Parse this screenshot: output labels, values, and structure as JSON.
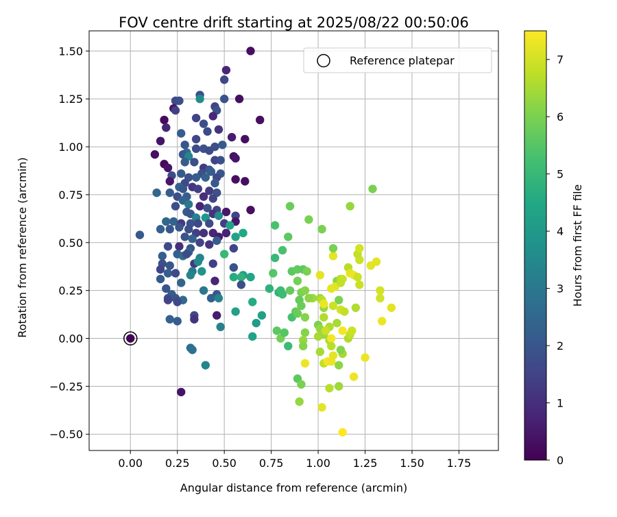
{
  "chart_data": {
    "type": "scatter",
    "title": "FOV centre drift starting at 2025/08/22 00:50:06",
    "xlabel": "Angular distance from reference (arcmin)",
    "ylabel": "Rotation from reference (arcmin)",
    "xlim": [
      -0.22,
      1.96
    ],
    "ylim": [
      -0.585,
      1.605
    ],
    "xticks": [
      0.0,
      0.25,
      0.5,
      0.75,
      1.0,
      1.25,
      1.5,
      1.75
    ],
    "xtick_labels": [
      "0.00",
      "0.25",
      "0.50",
      "0.75",
      "1.00",
      "1.25",
      "1.50",
      "1.75"
    ],
    "yticks": [
      -0.5,
      -0.25,
      0.0,
      0.25,
      0.5,
      0.75,
      1.0,
      1.25,
      1.5
    ],
    "ytick_labels": [
      "−0.50",
      "−0.25",
      "0.00",
      "0.25",
      "0.50",
      "0.75",
      "1.00",
      "1.25",
      "1.50"
    ],
    "grid": true,
    "legend": {
      "position": "top-right",
      "entries": [
        "Reference platepar"
      ]
    },
    "reference_point": [
      0.0,
      0.0
    ],
    "colorbar": {
      "label": "Hours from first FF file",
      "min": 0,
      "max": 7.5,
      "ticks": [
        0,
        1,
        2,
        3,
        4,
        5,
        6,
        7
      ],
      "colormap": "viridis"
    },
    "points": [
      [
        0.64,
        1.5,
        0.3
      ],
      [
        0.51,
        1.4,
        0.8
      ],
      [
        0.5,
        1.35,
        1.6
      ],
      [
        0.37,
        1.27,
        1.8
      ],
      [
        0.37,
        1.25,
        3.6
      ],
      [
        0.58,
        1.25,
        0.3
      ],
      [
        0.5,
        1.25,
        1.9
      ],
      [
        0.24,
        1.24,
        1.6
      ],
      [
        0.26,
        1.24,
        1.8
      ],
      [
        0.45,
        1.21,
        1.5
      ],
      [
        0.23,
        1.2,
        0.4
      ],
      [
        0.24,
        1.19,
        1.4
      ],
      [
        0.46,
        1.19,
        1.9
      ],
      [
        0.44,
        1.16,
        0.9
      ],
      [
        0.18,
        1.14,
        0.2
      ],
      [
        0.69,
        1.14,
        0.3
      ],
      [
        0.35,
        1.15,
        1.5
      ],
      [
        0.39,
        1.12,
        1.8
      ],
      [
        0.19,
        1.1,
        0.8
      ],
      [
        0.41,
        1.08,
        1.7
      ],
      [
        0.47,
        1.09,
        1.1
      ],
      [
        0.27,
        1.07,
        2.2
      ],
      [
        0.35,
        1.04,
        1.6
      ],
      [
        0.61,
        1.04,
        0.3
      ],
      [
        0.16,
        1.03,
        0.4
      ],
      [
        0.54,
        1.05,
        0.6
      ],
      [
        0.29,
        1.01,
        2.0
      ],
      [
        0.45,
        1.0,
        1.8
      ],
      [
        0.49,
        1.01,
        2.1
      ],
      [
        0.35,
        0.99,
        1.7
      ],
      [
        0.39,
        0.99,
        1.9
      ],
      [
        0.42,
        0.98,
        1.7
      ],
      [
        0.3,
        0.97,
        2.6
      ],
      [
        0.13,
        0.96,
        0.3
      ],
      [
        0.28,
        0.96,
        2.0
      ],
      [
        0.31,
        0.95,
        3.4
      ],
      [
        0.55,
        0.95,
        0.3
      ],
      [
        0.56,
        0.94,
        0.4
      ],
      [
        0.45,
        0.93,
        1.5
      ],
      [
        0.48,
        0.93,
        1.8
      ],
      [
        0.29,
        0.92,
        2.2
      ],
      [
        0.34,
        0.92,
        1.8
      ],
      [
        0.18,
        0.91,
        0.2
      ],
      [
        0.2,
        0.89,
        0.4
      ],
      [
        0.39,
        0.89,
        1.3
      ],
      [
        0.42,
        0.88,
        2.1
      ],
      [
        0.43,
        0.87,
        2.2
      ],
      [
        0.27,
        0.86,
        2.1
      ],
      [
        0.22,
        0.85,
        1.7
      ],
      [
        0.38,
        0.86,
        1.8
      ],
      [
        0.48,
        0.86,
        2.0
      ],
      [
        0.31,
        0.84,
        1.9
      ],
      [
        0.35,
        0.84,
        2.2
      ],
      [
        0.4,
        0.84,
        2.3
      ],
      [
        0.46,
        0.84,
        1.6
      ],
      [
        0.21,
        0.82,
        0.5
      ],
      [
        0.29,
        0.81,
        1.7
      ],
      [
        0.56,
        0.83,
        0.3
      ],
      [
        0.61,
        0.82,
        0.3
      ],
      [
        0.45,
        0.81,
        2.1
      ],
      [
        0.26,
        0.79,
        2.4
      ],
      [
        0.33,
        0.79,
        1.2
      ],
      [
        0.28,
        0.78,
        2.0
      ],
      [
        0.36,
        0.78,
        1.4
      ],
      [
        0.42,
        0.77,
        1.3
      ],
      [
        0.14,
        0.76,
        2.5
      ],
      [
        0.21,
        0.76,
        2.2
      ],
      [
        0.46,
        0.76,
        1.9
      ],
      [
        0.25,
        0.74,
        1.8
      ],
      [
        0.3,
        0.74,
        2.2
      ],
      [
        0.39,
        0.74,
        1.0
      ],
      [
        0.44,
        0.73,
        1.5
      ],
      [
        0.28,
        0.72,
        2.4
      ],
      [
        0.31,
        0.7,
        3.0
      ],
      [
        0.37,
        0.69,
        0.8
      ],
      [
        0.24,
        0.69,
        1.8
      ],
      [
        0.41,
        0.68,
        1.8
      ],
      [
        0.46,
        0.67,
        1.5
      ],
      [
        0.64,
        0.67,
        0.3
      ],
      [
        0.51,
        0.66,
        0.5
      ],
      [
        0.3,
        0.66,
        2.1
      ],
      [
        0.32,
        0.65,
        2.0
      ],
      [
        0.44,
        0.65,
        1.1
      ],
      [
        0.47,
        0.64,
        3.6
      ],
      [
        0.35,
        0.63,
        3.3
      ],
      [
        0.4,
        0.63,
        3.9
      ],
      [
        0.56,
        0.64,
        1.5
      ],
      [
        0.19,
        0.61,
        2.5
      ],
      [
        0.23,
        0.61,
        2.4
      ],
      [
        0.27,
        0.6,
        1.3
      ],
      [
        0.32,
        0.6,
        1.9
      ],
      [
        0.36,
        0.6,
        1.6
      ],
      [
        0.42,
        0.6,
        1.7
      ],
      [
        0.56,
        0.61,
        0.5
      ],
      [
        0.5,
        0.6,
        1.4
      ],
      [
        0.53,
        0.59,
        4.3
      ],
      [
        0.26,
        0.58,
        2.0
      ],
      [
        0.16,
        0.57,
        2.3
      ],
      [
        0.21,
        0.57,
        2.0
      ],
      [
        0.31,
        0.57,
        1.8
      ],
      [
        0.35,
        0.55,
        1.4
      ],
      [
        0.39,
        0.55,
        1.1
      ],
      [
        0.44,
        0.55,
        0.8
      ],
      [
        0.51,
        0.55,
        0.7
      ],
      [
        0.6,
        0.55,
        4.5
      ],
      [
        0.05,
        0.54,
        2.1
      ],
      [
        0.29,
        0.53,
        1.9
      ],
      [
        0.33,
        0.52,
        2.4
      ],
      [
        0.47,
        0.53,
        0.6
      ],
      [
        0.56,
        0.53,
        4.3
      ],
      [
        0.37,
        0.5,
        1.5
      ],
      [
        0.42,
        0.49,
        1.2
      ],
      [
        0.46,
        0.51,
        2.2
      ],
      [
        0.2,
        0.48,
        1.7
      ],
      [
        0.26,
        0.48,
        1.0
      ],
      [
        0.32,
        0.47,
        2.0
      ],
      [
        0.55,
        0.47,
        1.5
      ],
      [
        0.31,
        0.45,
        2.4
      ],
      [
        0.5,
        0.44,
        5.0
      ],
      [
        0.25,
        0.44,
        2.3
      ],
      [
        0.28,
        0.43,
        2.6
      ],
      [
        0.17,
        0.43,
        2.2
      ],
      [
        0.3,
        0.44,
        1.7
      ],
      [
        0.37,
        0.42,
        3.4
      ],
      [
        0.17,
        0.39,
        1.8
      ],
      [
        0.21,
        0.38,
        2.0
      ],
      [
        0.34,
        0.39,
        1.2
      ],
      [
        0.36,
        0.4,
        3.5
      ],
      [
        0.44,
        0.39,
        1.4
      ],
      [
        0.55,
        0.37,
        1.9
      ],
      [
        0.16,
        0.36,
        1.5
      ],
      [
        0.2,
        0.34,
        2.2
      ],
      [
        0.24,
        0.34,
        1.6
      ],
      [
        0.33,
        0.35,
        3.0
      ],
      [
        0.38,
        0.35,
        3.8
      ],
      [
        0.32,
        0.33,
        3.4
      ],
      [
        0.6,
        0.33,
        4.2
      ],
      [
        0.55,
        0.32,
        4.6
      ],
      [
        0.59,
        0.32,
        4.8
      ],
      [
        0.64,
        0.32,
        4.4
      ],
      [
        0.16,
        0.31,
        2.1
      ],
      [
        0.45,
        0.3,
        0.8
      ],
      [
        0.27,
        0.29,
        2.4
      ],
      [
        0.59,
        0.28,
        1.8
      ],
      [
        0.19,
        0.26,
        2.0
      ],
      [
        0.39,
        0.25,
        3.0
      ],
      [
        0.22,
        0.23,
        2.2
      ],
      [
        0.46,
        0.23,
        2.0
      ],
      [
        0.2,
        0.21,
        1.9
      ],
      [
        0.24,
        0.21,
        2.0
      ],
      [
        0.28,
        0.2,
        2.6
      ],
      [
        0.43,
        0.21,
        2.3
      ],
      [
        0.47,
        0.21,
        3.3
      ],
      [
        0.2,
        0.2,
        1.5
      ],
      [
        0.25,
        0.19,
        1.6
      ],
      [
        0.56,
        0.14,
        4.2
      ],
      [
        0.21,
        0.1,
        2.3
      ],
      [
        0.25,
        0.09,
        2.2
      ],
      [
        0.34,
        0.12,
        1.6
      ],
      [
        0.34,
        0.1,
        1.1
      ],
      [
        0.46,
        0.12,
        0.6
      ],
      [
        0.48,
        0.06,
        3.2
      ],
      [
        0.67,
        0.08,
        4.1
      ],
      [
        0.65,
        0.19,
        4.6
      ],
      [
        0.7,
        0.12,
        4.2
      ],
      [
        0.65,
        0.01,
        4.3
      ],
      [
        0.32,
        -0.05,
        2.7
      ],
      [
        0.33,
        -0.06,
        2.8
      ],
      [
        0.4,
        -0.14,
        3.4
      ],
      [
        0.27,
        -0.28,
        0.4
      ],
      [
        0.85,
        0.69,
        5.8
      ],
      [
        0.77,
        0.59,
        5.3
      ],
      [
        0.95,
        0.62,
        6.0
      ],
      [
        0.81,
        0.46,
        5.3
      ],
      [
        0.84,
        0.53,
        5.6
      ],
      [
        0.77,
        0.42,
        5.0
      ],
      [
        0.86,
        0.35,
        5.6
      ],
      [
        0.89,
        0.36,
        5.7
      ],
      [
        0.92,
        0.36,
        5.6
      ],
      [
        0.76,
        0.34,
        5.5
      ],
      [
        0.94,
        0.35,
        6.0
      ],
      [
        0.89,
        0.3,
        5.9
      ],
      [
        0.74,
        0.26,
        4.8
      ],
      [
        0.79,
        0.24,
        4.8
      ],
      [
        0.8,
        0.25,
        5.1
      ],
      [
        0.81,
        0.23,
        5.1
      ],
      [
        0.85,
        0.25,
        5.7
      ],
      [
        0.91,
        0.24,
        6.0
      ],
      [
        0.93,
        0.25,
        6.1
      ],
      [
        0.97,
        0.21,
        6.4
      ],
      [
        0.9,
        0.2,
        5.7
      ],
      [
        0.95,
        0.21,
        6.2
      ],
      [
        0.88,
        0.14,
        5.7
      ],
      [
        0.86,
        0.11,
        5.3
      ],
      [
        0.89,
        0.13,
        5.8
      ],
      [
        0.91,
        0.17,
        5.8
      ],
      [
        0.93,
        0.11,
        6.1
      ],
      [
        0.78,
        0.04,
        5.6
      ],
      [
        0.8,
        -0.0,
        5.9
      ],
      [
        0.82,
        0.03,
        5.5
      ],
      [
        0.84,
        -0.04,
        5.1
      ],
      [
        0.93,
        0.03,
        6.1
      ],
      [
        0.92,
        -0.01,
        6.3
      ],
      [
        0.92,
        -0.04,
        6.1
      ],
      [
        0.89,
        -0.21,
        5.6
      ],
      [
        0.91,
        -0.24,
        6.0
      ],
      [
        0.9,
        -0.33,
        6.3
      ],
      [
        0.93,
        -0.13,
        7.3
      ],
      [
        1.0,
        0.07,
        6.0
      ],
      [
        1.01,
        0.05,
        6.3
      ],
      [
        1.0,
        0.01,
        6.5
      ],
      [
        1.03,
        0.02,
        6.4
      ],
      [
        1.06,
        0.06,
        6.6
      ],
      [
        1.04,
        0.04,
        6.9
      ],
      [
        1.03,
        0.11,
        6.6
      ],
      [
        1.03,
        0.16,
        6.3
      ],
      [
        1.01,
        0.21,
        6.4
      ],
      [
        1.02,
        0.2,
        6.7
      ],
      [
        1.03,
        0.18,
        7.3
      ],
      [
        1.06,
        -0.01,
        6.6
      ],
      [
        1.07,
        -0.0,
        7.4
      ],
      [
        1.07,
        -0.04,
        6.7
      ],
      [
        1.01,
        -0.07,
        6.5
      ],
      [
        1.03,
        -0.13,
        6.8
      ],
      [
        1.05,
        -0.12,
        7.4
      ],
      [
        1.07,
        -0.12,
        7.3
      ],
      [
        1.08,
        -0.09,
        7.2
      ],
      [
        1.11,
        -0.14,
        6.2
      ],
      [
        1.13,
        -0.08,
        6.5
      ],
      [
        1.12,
        -0.06,
        6.1
      ],
      [
        1.06,
        -0.26,
        6.7
      ],
      [
        1.11,
        -0.25,
        6.4
      ],
      [
        1.02,
        -0.36,
        7.2
      ],
      [
        1.13,
        -0.49,
        7.5
      ],
      [
        1.19,
        -0.2,
        7.3
      ],
      [
        1.25,
        -0.1,
        7.3
      ],
      [
        1.11,
        0.2,
        6.0
      ],
      [
        1.12,
        0.15,
        7.0
      ],
      [
        1.13,
        0.04,
        7.4
      ],
      [
        1.16,
        0.0,
        6.6
      ],
      [
        1.17,
        0.02,
        6.8
      ],
      [
        1.18,
        0.04,
        6.9
      ],
      [
        1.1,
        0.08,
        6.5
      ],
      [
        1.14,
        0.14,
        6.8
      ],
      [
        1.2,
        0.16,
        6.6
      ],
      [
        1.22,
        0.28,
        6.9
      ],
      [
        1.1,
        0.3,
        6.2
      ],
      [
        1.12,
        0.31,
        6.6
      ],
      [
        1.13,
        0.31,
        6.9
      ],
      [
        1.16,
        0.37,
        6.7
      ],
      [
        1.17,
        0.34,
        7.2
      ],
      [
        1.19,
        0.33,
        7.3
      ],
      [
        1.21,
        0.32,
        6.9
      ],
      [
        1.07,
        0.26,
        7.2
      ],
      [
        1.09,
        0.27,
        7.2
      ],
      [
        1.08,
        0.17,
        6.9
      ],
      [
        1.08,
        0.43,
        7.2
      ],
      [
        1.08,
        0.47,
        6.0
      ],
      [
        1.22,
        0.41,
        6.9
      ],
      [
        1.21,
        0.44,
        6.8
      ],
      [
        1.22,
        0.47,
        7.0
      ],
      [
        1.28,
        0.38,
        7.2
      ],
      [
        1.31,
        0.4,
        7.2
      ],
      [
        1.33,
        0.25,
        7.0
      ],
      [
        1.33,
        0.21,
        7.0
      ],
      [
        1.34,
        0.09,
        7.3
      ],
      [
        1.39,
        0.16,
        7.2
      ],
      [
        1.02,
        0.57,
        6.0
      ],
      [
        1.17,
        0.69,
        6.3
      ],
      [
        1.29,
        0.78,
        6.0
      ],
      [
        1.01,
        0.33,
        7.2
      ],
      [
        1.12,
        0.29,
        6.8
      ]
    ]
  }
}
